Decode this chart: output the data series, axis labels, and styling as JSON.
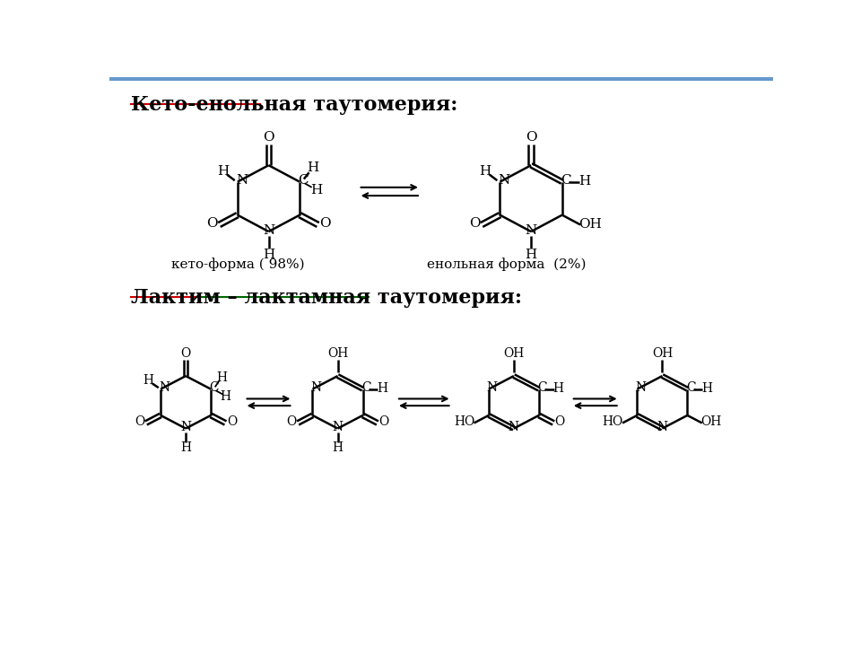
{
  "title1": "Кето-енольная таутомерия:",
  "title2": "Лактим – лактамная таутомерия:",
  "label_keto": "кето-форма ( 98%)",
  "label_enol": "енольная форма  (2%)",
  "bg_color": "#ffffff",
  "line_color": "#000000",
  "title_color": "#000000",
  "underline_color1": "#cc0000",
  "underline_color2_left": "#cc0000",
  "underline_color2_right": "#006600",
  "top_border_color": "#6699cc"
}
